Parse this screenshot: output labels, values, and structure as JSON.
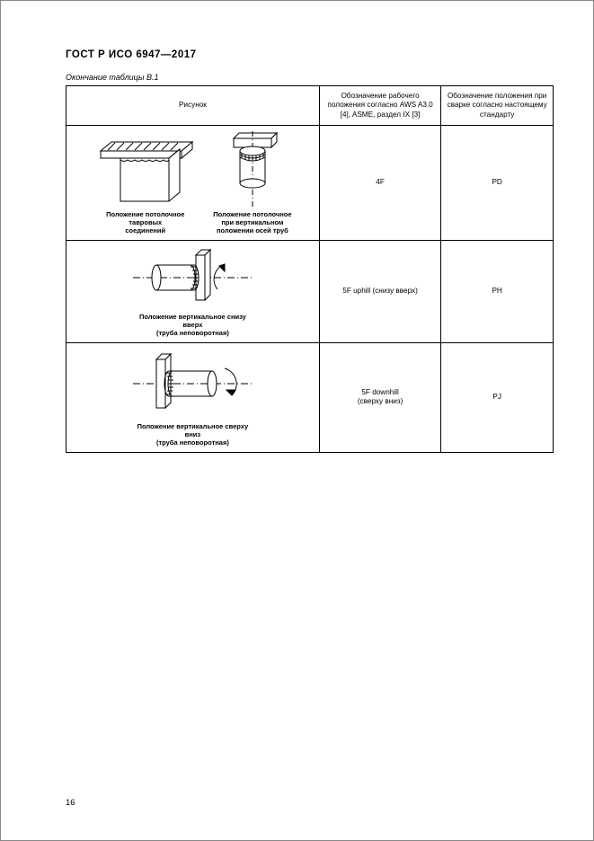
{
  "header": {
    "doc_title": "ГОСТ Р ИСО  6947—2017",
    "caption": "Окончание таблицы В.1"
  },
  "table": {
    "headers": {
      "col1": "Рисунок",
      "col2": "Обозначение рабочего положения согласно AWS A3.0 [4], ASME, раздел IX [3]",
      "col3": "Обозначение положения при сварке согласно настоящему стандарту"
    },
    "rows": [
      {
        "fig_labels": [
          "Положение потолочное\nтавровых\nсоединений",
          "Положение потолочное\nпри вертикальном\nположении осей труб"
        ],
        "col2": "4F",
        "col3": "PD"
      },
      {
        "fig_labels": [
          "Положение вертикальное снизу вверх\n(труба неповоротная)"
        ],
        "col2": "5F uphill (снизу вверх)",
        "col3": "PH"
      },
      {
        "fig_labels": [
          "Положение вертикальное сверху вниз\n(труба неповоротная)"
        ],
        "col2": "5F  downhill\n(сверху вниз)",
        "col3": "PJ"
      }
    ]
  },
  "page_number": "16"
}
